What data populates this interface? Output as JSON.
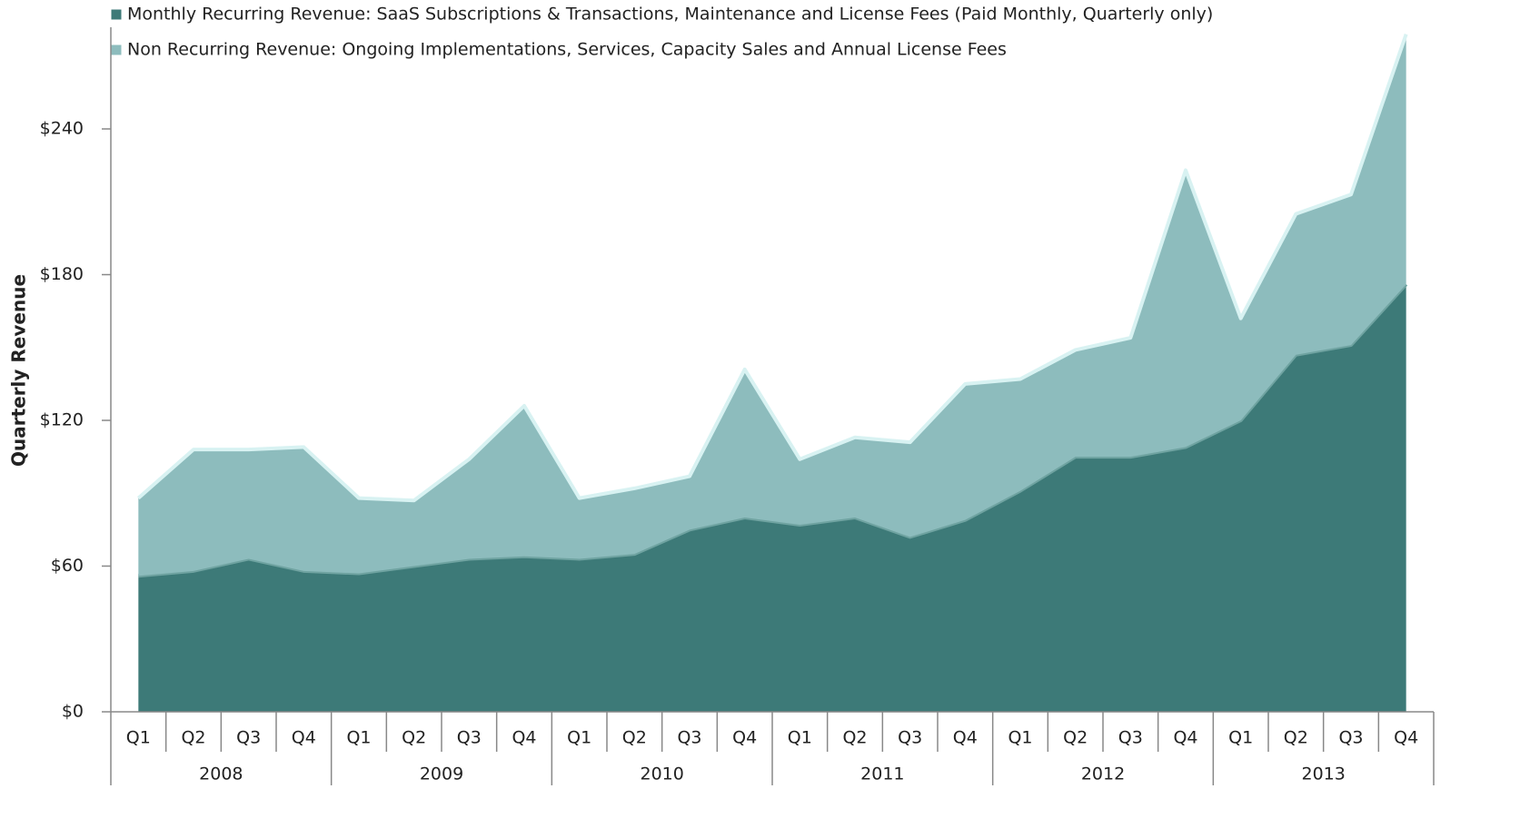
{
  "chart_data": {
    "type": "stacked_area",
    "y_label": "Quarterly Revenue",
    "categories": [
      "Q1",
      "Q2",
      "Q3",
      "Q4",
      "Q1",
      "Q2",
      "Q3",
      "Q4",
      "Q1",
      "Q2",
      "Q3",
      "Q4",
      "Q1",
      "Q2",
      "Q3",
      "Q4",
      "Q1",
      "Q2",
      "Q3",
      "Q4",
      "Q1",
      "Q2",
      "Q3",
      "Q4"
    ],
    "years": [
      "2008",
      "2009",
      "2010",
      "2011",
      "2012",
      "2013"
    ],
    "series": [
      {
        "name": "Monthly Recurring Revenue: SaaS Subscriptions & Transactions, Maintenance and License Fees (Paid Monthly, Quarterly only)",
        "color": "#3d7a78",
        "values": [
          56,
          58,
          63,
          58,
          57,
          60,
          63,
          64,
          63,
          65,
          75,
          80,
          77,
          80,
          72,
          79,
          91,
          105,
          105,
          109,
          120,
          147,
          151,
          176
        ]
      },
      {
        "name": "Non Recurring Revenue: Ongoing Implementations, Services, Capacity Sales and Annual License Fees",
        "color": "#8dbcbd",
        "values": [
          32,
          50,
          45,
          51,
          31,
          27,
          41,
          62,
          25,
          27,
          22,
          61,
          27,
          33,
          39,
          56,
          46,
          44,
          49,
          114,
          42,
          58,
          62,
          103
        ]
      }
    ],
    "ylim": [
      0,
      280
    ],
    "yticks": [
      {
        "value": 0,
        "label": "$0"
      },
      {
        "value": 60,
        "label": "$60"
      },
      {
        "value": 120,
        "label": "$120"
      },
      {
        "value": 180,
        "label": "$180"
      },
      {
        "value": 240,
        "label": "$240"
      }
    ]
  }
}
